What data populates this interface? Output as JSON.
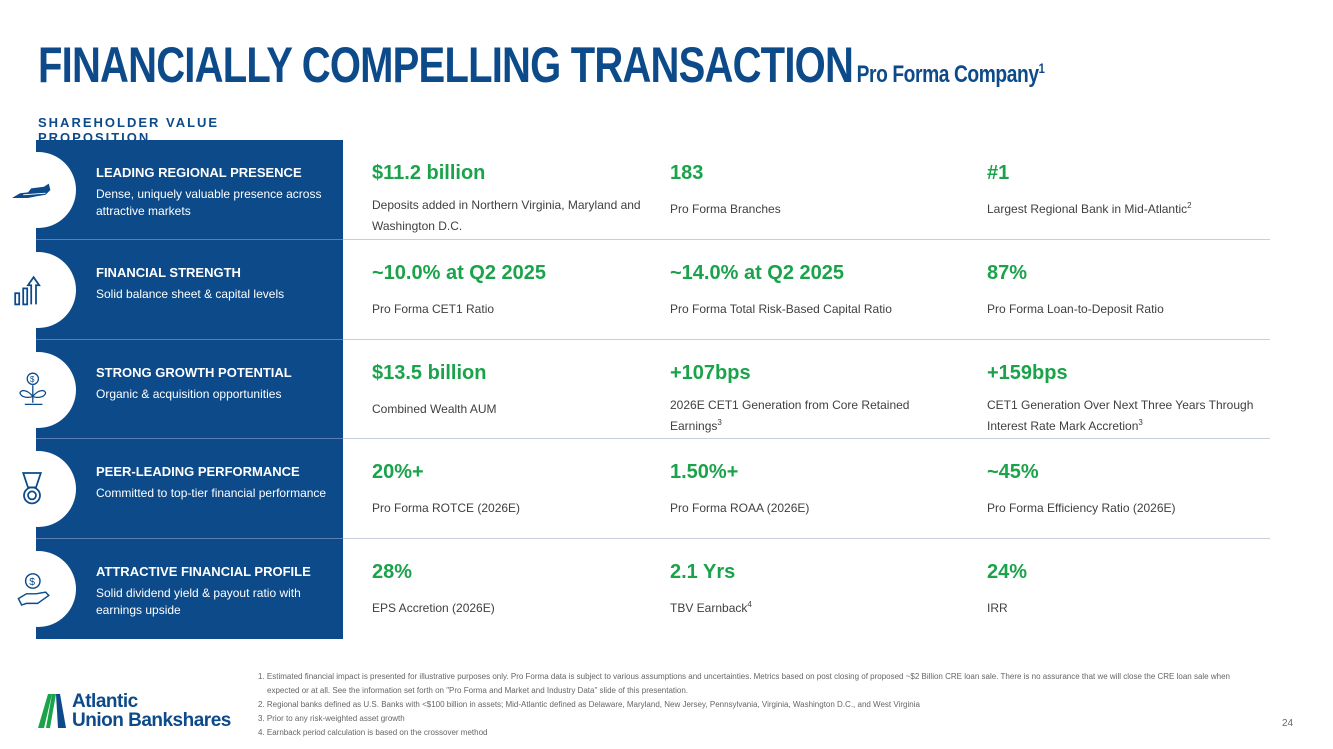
{
  "title": {
    "main": "FINANCIALLY COMPELLING TRANSACTION",
    "sub": "Pro Forma Company",
    "sub_sup": "1"
  },
  "section_label": "SHAREHOLDER VALUE PROPOSITION",
  "rows": [
    {
      "icon": "state-map-icon",
      "heading": "LEADING REGIONAL PRESENCE",
      "desc": "Dense, uniquely valuable presence across attractive markets",
      "metrics": [
        {
          "value": "$11.2 billion",
          "label": "Deposits added in Northern Virginia, Maryland and Washington D.C.",
          "sup": ""
        },
        {
          "value": "183",
          "label": "Pro Forma Branches",
          "sup": ""
        },
        {
          "value": "#1",
          "label": "Largest Regional Bank in Mid-Atlantic",
          "sup": "2"
        }
      ]
    },
    {
      "icon": "bar-chart-up-icon",
      "heading": "FINANCIAL STRENGTH",
      "desc": "Solid balance sheet & capital levels",
      "metrics": [
        {
          "value": "~10.0% at Q2 2025",
          "label": "Pro Forma CET1 Ratio",
          "sup": ""
        },
        {
          "value": "~14.0% at Q2 2025",
          "label": "Pro Forma Total Risk-Based Capital Ratio",
          "sup": ""
        },
        {
          "value": "87%",
          "label": "Pro Forma Loan-to-Deposit Ratio",
          "sup": ""
        }
      ]
    },
    {
      "icon": "money-plant-icon",
      "heading": "STRONG GROWTH POTENTIAL",
      "desc": "Organic & acquisition opportunities",
      "metrics": [
        {
          "value": "$13.5 billion",
          "label": "Combined Wealth AUM",
          "sup": ""
        },
        {
          "value": "+107bps",
          "label": "2026E CET1 Generation from Core Retained Earnings",
          "sup": "3"
        },
        {
          "value": "+159bps",
          "label": "CET1 Generation Over Next Three Years Through Interest Rate Mark Accretion",
          "sup": "3"
        }
      ]
    },
    {
      "icon": "medal-icon",
      "heading": "PEER-LEADING PERFORMANCE",
      "desc": "Committed to top-tier financial performance",
      "metrics": [
        {
          "value": "20%+",
          "label": "Pro Forma ROTCE (2026E)",
          "sup": ""
        },
        {
          "value": "1.50%+",
          "label": "Pro Forma ROAA (2026E)",
          "sup": ""
        },
        {
          "value": "~45%",
          "label": "Pro Forma Efficiency Ratio (2026E)",
          "sup": ""
        }
      ]
    },
    {
      "icon": "hand-dollar-icon",
      "heading": "ATTRACTIVE FINANCIAL PROFILE",
      "desc": "Solid dividend yield & payout ratio with earnings upside",
      "metrics": [
        {
          "value": "28%",
          "label": "EPS Accretion (2026E)",
          "sup": ""
        },
        {
          "value": "2.1 Yrs",
          "label": "TBV Earnback",
          "sup": "4"
        },
        {
          "value": "24%",
          "label": "IRR",
          "sup": ""
        }
      ]
    }
  ],
  "footnotes": [
    "1. Estimated financial impact is presented for illustrative purposes only. Pro Forma data is subject to various assumptions and uncertainties. Metrics based on post closing of proposed ~$2 Billion CRE loan sale.  There is no assurance that we will close the CRE loan sale when expected or at all. See the information set forth on \"Pro Forma and Market and Industry Data\" slide of this presentation.",
    "2. Regional banks defined as U.S. Banks with <$100 billion in assets; Mid-Atlantic defined as Delaware, Maryland, New Jersey, Pennsylvania, Virginia, Washington D.C., and West Virginia",
    "3. Prior to any risk-weighted asset growth",
    "4. Earnback period calculation is based on the crossover method"
  ],
  "logo": {
    "line1": "Atlantic",
    "line2": "Union Bankshares"
  },
  "page_number": "24",
  "colors": {
    "navy": "#0c4a8a",
    "green": "#1aa34a"
  }
}
